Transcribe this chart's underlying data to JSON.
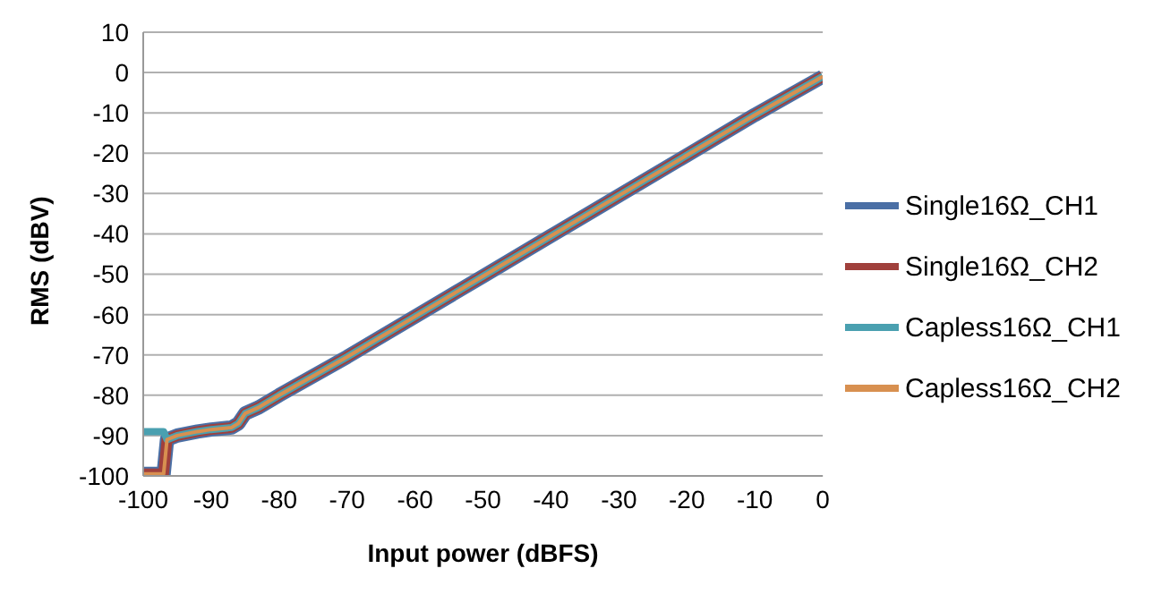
{
  "chart_data": {
    "type": "line",
    "xlabel": "Input power (dBFS)",
    "ylabel": "RMS (dBV)",
    "xlim": [
      -100,
      0
    ],
    "xticks": [
      -100,
      -90,
      -80,
      -70,
      -60,
      -50,
      -40,
      -30,
      -20,
      -10,
      0
    ],
    "ylim": [
      -100,
      10
    ],
    "yticks": [
      -100,
      -90,
      -80,
      -70,
      -60,
      -50,
      -40,
      -30,
      -20,
      -10,
      0,
      10
    ],
    "grid": "y",
    "legend": "right",
    "marker": "none",
    "line_style": "solid",
    "x": [
      -100,
      -98,
      -97,
      -96.5,
      -95,
      -92,
      -90,
      -87,
      -86,
      -85,
      -83,
      -82,
      -80,
      -70,
      -60,
      -50,
      -40,
      -30,
      -20,
      -10,
      0
    ],
    "series": [
      {
        "name": "Single16Ω_CH1",
        "color": "#4a6fa5",
        "values": [
          -99.5,
          -99.5,
          -99.5,
          -91,
          -90,
          -89,
          -88.5,
          -88,
          -87,
          -84.5,
          -83,
          -82,
          -80,
          -70.5,
          -60.5,
          -50.5,
          -40.5,
          -30.5,
          -20.5,
          -10.5,
          -1
        ]
      },
      {
        "name": "Single16Ω_CH2",
        "color": "#a0403c",
        "values": [
          -99.5,
          -99.5,
          -99.5,
          -91,
          -90,
          -89,
          -88.5,
          -88,
          -87,
          -84.5,
          -83,
          -82,
          -80,
          -70.5,
          -60.5,
          -50.5,
          -40.5,
          -30.5,
          -20.5,
          -10.5,
          -1
        ]
      },
      {
        "name": "Capless16Ω_CH1",
        "color": "#4aa0b0",
        "values": [
          -89,
          -89,
          -89,
          -91,
          -90,
          -89,
          -88.5,
          -88,
          -87,
          -84.5,
          -83,
          -82,
          -80,
          -70.5,
          -60.5,
          -50.5,
          -40.5,
          -30.5,
          -20.5,
          -10.5,
          -1
        ]
      },
      {
        "name": "Capless16Ω_CH2",
        "color": "#d89050",
        "values": [
          -99.5,
          -99.5,
          -99.5,
          -91,
          -90,
          -89,
          -88.5,
          -88,
          -87,
          -84.5,
          -83,
          -82,
          -80,
          -70.5,
          -60.5,
          -50.5,
          -40.5,
          -30.5,
          -20.5,
          -10.5,
          -1
        ]
      }
    ]
  }
}
